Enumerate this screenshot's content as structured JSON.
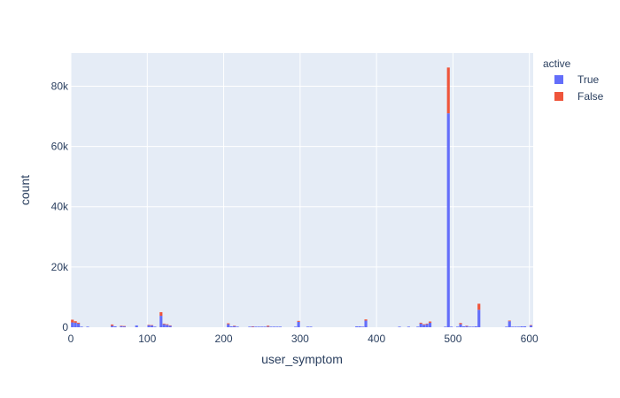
{
  "chart_data": {
    "type": "bar",
    "barmode": "stack",
    "xlabel": "user_symptom",
    "ylabel": "count",
    "xlim": [
      0,
      605
    ],
    "ylim": [
      0,
      91000
    ],
    "bin_width": 4,
    "xticks": [
      0,
      100,
      200,
      300,
      400,
      500,
      600
    ],
    "xtick_labels": [
      "0",
      "100",
      "200",
      "300",
      "400",
      "500",
      "600"
    ],
    "yticks": [
      0,
      20000,
      40000,
      60000,
      80000
    ],
    "ytick_labels": [
      "0",
      "20k",
      "40k",
      "60k",
      "80k"
    ],
    "grid": true,
    "background": "#e5ecf6",
    "legend": {
      "title": "active",
      "position": "top-right"
    },
    "x": [
      0,
      4,
      8,
      12,
      20,
      52,
      56,
      64,
      68,
      84,
      100,
      104,
      108,
      116,
      120,
      124,
      128,
      204,
      208,
      212,
      216,
      232,
      236,
      240,
      244,
      248,
      252,
      256,
      260,
      264,
      268,
      272,
      292,
      296,
      308,
      312,
      372,
      376,
      380,
      384,
      428,
      440,
      452,
      456,
      460,
      464,
      468,
      488,
      492,
      496,
      504,
      508,
      512,
      516,
      520,
      524,
      528,
      532,
      568,
      572,
      576,
      580,
      584,
      588,
      592,
      600
    ],
    "series": [
      {
        "name": "True",
        "color": "#636efa",
        "values": [
          1600,
          1500,
          1200,
          200,
          200,
          500,
          300,
          400,
          300,
          600,
          700,
          600,
          200,
          3800,
          1000,
          800,
          500,
          1000,
          300,
          400,
          200,
          200,
          200,
          200,
          200,
          200,
          200,
          200,
          200,
          200,
          200,
          200,
          200,
          1800,
          200,
          200,
          300,
          300,
          200,
          2200,
          200,
          200,
          200,
          1200,
          800,
          1000,
          1500,
          200,
          71000,
          200,
          200,
          1000,
          300,
          400,
          200,
          200,
          300,
          5800,
          200,
          2000,
          200,
          200,
          200,
          300,
          300,
          600
        ]
      },
      {
        "name": "False",
        "color": "#ef553b",
        "values": [
          900,
          500,
          300,
          0,
          0,
          400,
          0,
          100,
          100,
          0,
          100,
          100,
          0,
          1200,
          200,
          200,
          100,
          300,
          0,
          100,
          0,
          0,
          100,
          0,
          0,
          0,
          0,
          300,
          0,
          0,
          0,
          0,
          0,
          300,
          0,
          0,
          0,
          0,
          0,
          400,
          0,
          0,
          0,
          300,
          200,
          200,
          400,
          0,
          15200,
          0,
          0,
          400,
          0,
          100,
          0,
          0,
          0,
          2000,
          0,
          200,
          0,
          0,
          0,
          0,
          0,
          100
        ]
      }
    ]
  }
}
